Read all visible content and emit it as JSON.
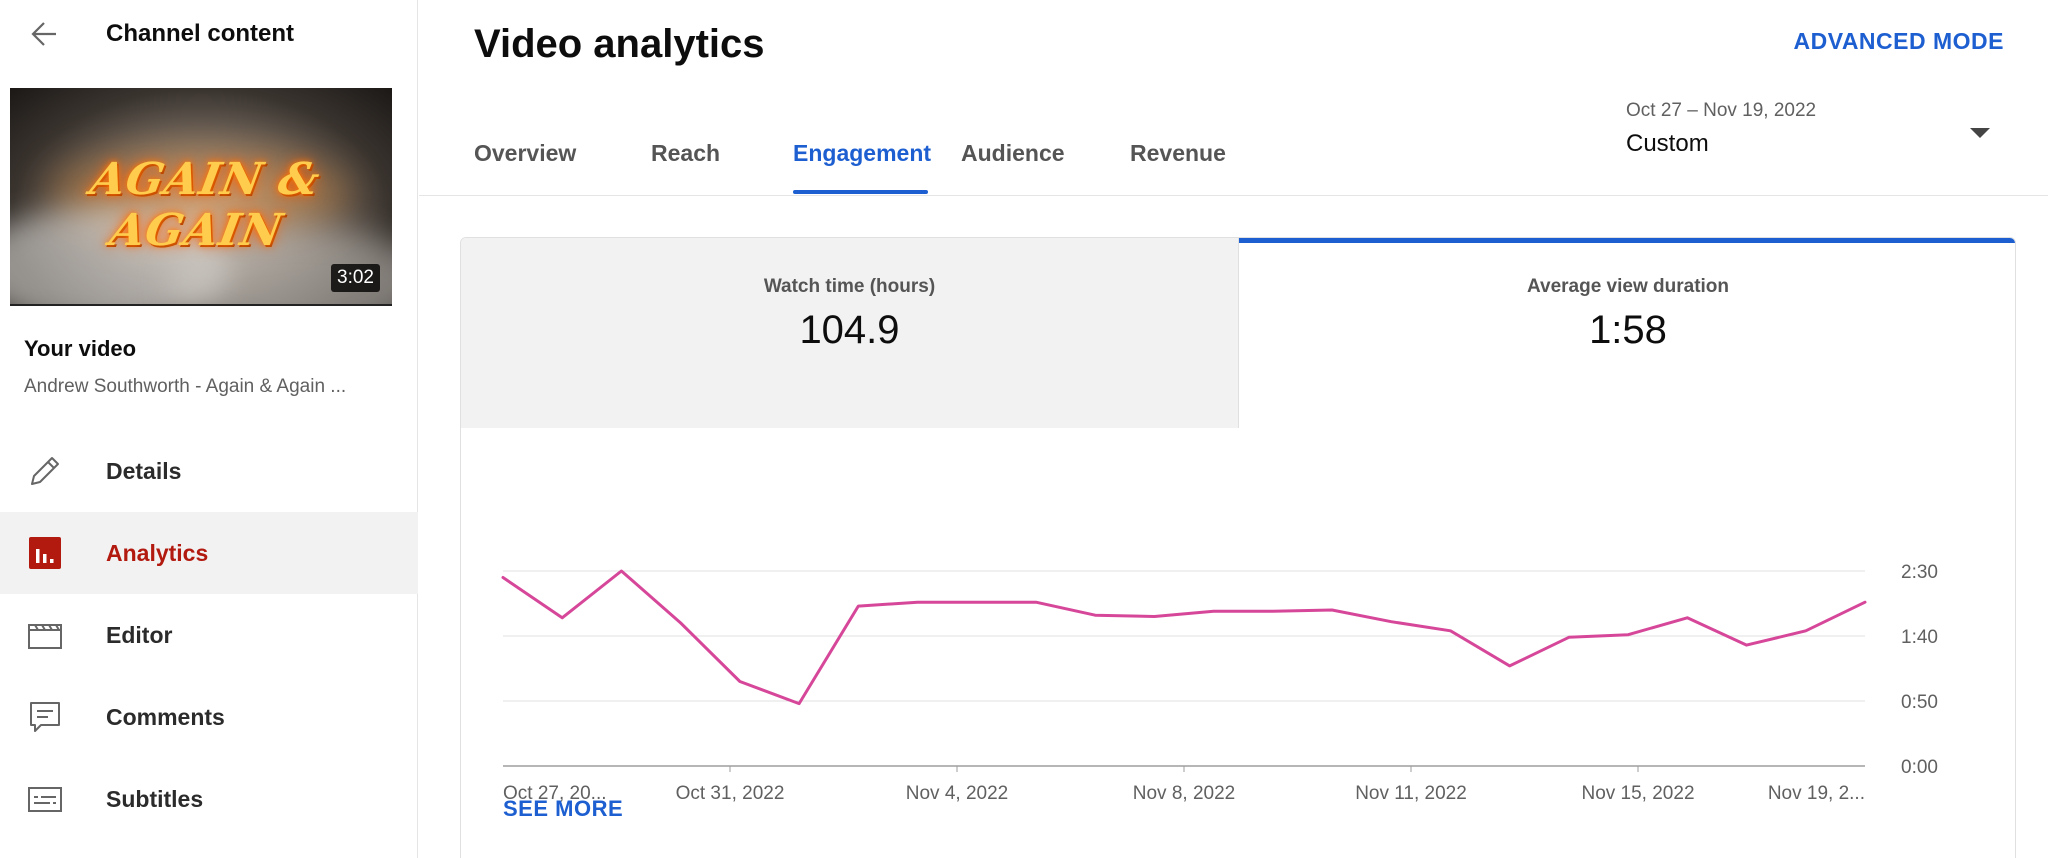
{
  "sidebar": {
    "title": "Channel content",
    "thumbnail_title": "AGAIN & AGAIN",
    "thumbnail_duration": "3:02",
    "your_video_label": "Your video",
    "video_name": "Andrew Southworth - Again & Again ...",
    "items": [
      {
        "label": "Details",
        "icon": "pencil-icon"
      },
      {
        "label": "Analytics",
        "icon": "analytics-icon",
        "active": true
      },
      {
        "label": "Editor",
        "icon": "clapperboard-icon"
      },
      {
        "label": "Comments",
        "icon": "comment-icon"
      },
      {
        "label": "Subtitles",
        "icon": "subtitles-icon"
      }
    ]
  },
  "header": {
    "title": "Video analytics",
    "advanced_mode": "ADVANCED MODE",
    "tabs": [
      "Overview",
      "Reach",
      "Engagement",
      "Audience",
      "Revenue"
    ],
    "active_tab": "Engagement",
    "date_range": "Oct 27 – Nov 19, 2022",
    "date_label": "Custom"
  },
  "metrics": [
    {
      "label": "Watch time (hours)",
      "value": "104.9"
    },
    {
      "label": "Average view duration",
      "value": "1:58",
      "selected": true
    }
  ],
  "see_more": "SEE MORE",
  "colors": {
    "accent": "#1d5fd1",
    "line": "#d6479a",
    "active_nav": "#b2190f"
  },
  "chart_data": {
    "type": "line",
    "x_ticks": [
      "Oct 27, 20...",
      "Oct 31, 2022",
      "Nov 4, 2022",
      "Nov 8, 2022",
      "Nov 11, 2022",
      "Nov 15, 2022",
      "Nov 19, 2..."
    ],
    "y_ticks": [
      "0:00",
      "0:50",
      "1:40",
      "2:30"
    ],
    "ylim": [
      0,
      150
    ],
    "grid": true,
    "series": [
      {
        "x": [
          "2022-10-27",
          "2022-10-28",
          "2022-10-29",
          "2022-10-30",
          "2022-10-31",
          "2022-11-01",
          "2022-11-02",
          "2022-11-03",
          "2022-11-04",
          "2022-11-05",
          "2022-11-06",
          "2022-11-07",
          "2022-11-08",
          "2022-11-09",
          "2022-11-10",
          "2022-11-11",
          "2022-11-12",
          "2022-11-13",
          "2022-11-14",
          "2022-11-15",
          "2022-11-16",
          "2022-11-17",
          "2022-11-18",
          "2022-11-19"
        ],
        "values": [
          145,
          114,
          150,
          110,
          65,
          48,
          123,
          126,
          126,
          126,
          116,
          115,
          119,
          119,
          120,
          111,
          104,
          77,
          99,
          101,
          114,
          93,
          104,
          126
        ]
      }
    ]
  }
}
